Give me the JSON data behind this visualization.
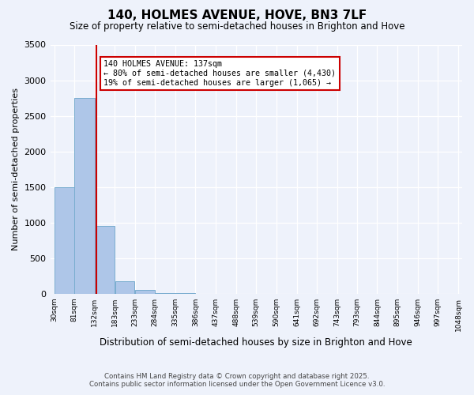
{
  "title": "140, HOLMES AVENUE, HOVE, BN3 7LF",
  "subtitle": "Size of property relative to semi-detached houses in Brighton and Hove",
  "xlabel": "Distribution of semi-detached houses by size in Brighton and Hove",
  "ylabel": "Number of semi-detached properties",
  "footnote1": "Contains HM Land Registry data © Crown copyright and database right 2025.",
  "footnote2": "Contains public sector information licensed under the Open Government Licence v3.0.",
  "annotation_line1": "140 HOLMES AVENUE: 137sqm",
  "annotation_line2": "← 80% of semi-detached houses are smaller (4,430)",
  "annotation_line3": "19% of semi-detached houses are larger (1,065) →",
  "property_size": 137,
  "bar_color": "#aec6e8",
  "bar_edge_color": "#7aadcf",
  "vline_color": "#cc0000",
  "annotation_box_color": "#cc0000",
  "background_color": "#eef2fb",
  "ylim": [
    0,
    3500
  ],
  "yticks": [
    0,
    500,
    1000,
    1500,
    2000,
    2500,
    3000,
    3500
  ],
  "bin_edges": [
    30,
    81,
    132,
    183,
    233,
    284,
    335,
    386,
    437,
    488,
    539,
    590,
    641,
    692,
    743,
    793,
    844,
    895,
    946,
    997,
    1048
  ],
  "bin_labels": [
    "30sqm",
    "81sqm",
    "132sqm",
    "183sqm",
    "233sqm",
    "284sqm",
    "335sqm",
    "386sqm",
    "437sqm",
    "488sqm",
    "539sqm",
    "590sqm",
    "641sqm",
    "692sqm",
    "743sqm",
    "793sqm",
    "844sqm",
    "895sqm",
    "946sqm",
    "997sqm",
    "1048sqm"
  ],
  "bar_heights": [
    1500,
    2750,
    950,
    175,
    50,
    10,
    5,
    3,
    2,
    1,
    1,
    0,
    0,
    0,
    0,
    0,
    0,
    0,
    0,
    0
  ]
}
